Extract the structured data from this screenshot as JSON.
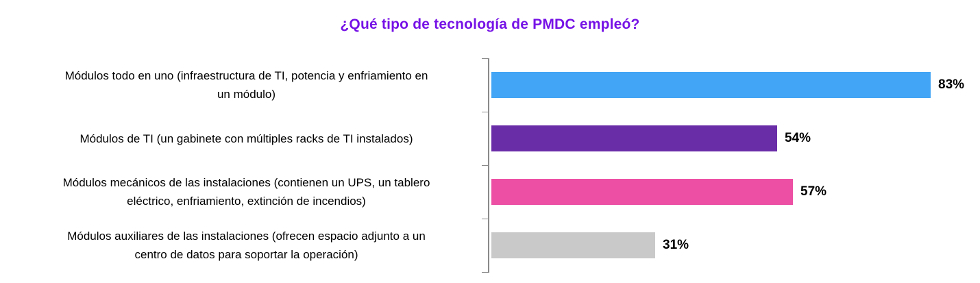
{
  "title": "¿Qué tipo de tecnología de PMDC empleó?",
  "colors": {
    "title": "#7612E6",
    "axis": "#8a8a8a",
    "text": "#000000"
  },
  "chart_data": {
    "type": "bar",
    "orientation": "horizontal",
    "title": "¿Qué tipo de tecnología de PMDC empleó?",
    "categories": [
      "Módulos todo en uno (infraestructura de TI, potencia y enfriamiento en un módulo)",
      "Módulos de TI (un gabinete con múltiples racks de TI instalados)",
      "Módulos mecánicos de las instalaciones (contienen un UPS, un tablero eléctrico, enfriamiento, extinción de incendios)",
      "Módulos auxiliares de las instalaciones (ofrecen espacio adjunto a un centro de datos para soportar la operación)"
    ],
    "categories_wrapped": [
      "Módulos todo en uno (infraestructura de TI, potencia y enfriamiento en\nun módulo)",
      "Módulos de TI (un gabinete con múltiples racks de TI instalados)",
      "Módulos mecánicos de las instalaciones (contienen un UPS, un tablero\neléctrico, enfriamiento, extinción de incendios)",
      "Módulos auxiliares de las instalaciones (ofrecen espacio adjunto a un\ncentro de datos para soportar la operación)"
    ],
    "values": [
      83,
      54,
      57,
      31
    ],
    "value_labels": [
      "83%",
      "54%",
      "57%",
      "31%"
    ],
    "value_suffix": "%",
    "bar_colors": [
      "#42A5F5",
      "#6A2DA8",
      "#EC4FA4",
      "#C9C9C9"
    ],
    "xlim": [
      0,
      100
    ],
    "xlabel": "",
    "ylabel": "",
    "grid": false,
    "legend": false,
    "value_labels_position": "outside-end"
  }
}
